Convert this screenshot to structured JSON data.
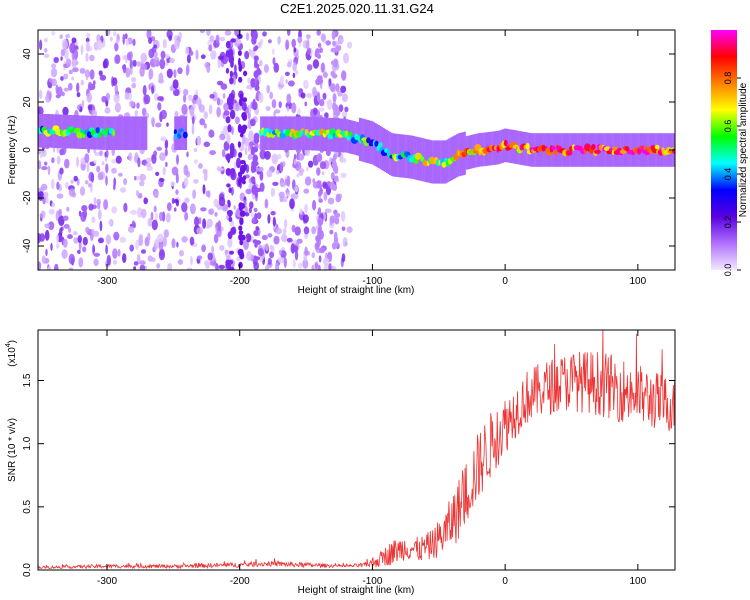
{
  "figure": {
    "title": "C2E1.2025.020.11.31.G24"
  },
  "chart_data": [
    {
      "type": "heatmap",
      "title": "C2E1.2025.020.11.31.G24",
      "xlabel": "Height of straight line (km)",
      "ylabel": "Frequency (Hz)",
      "xlim": [
        -352,
        128
      ],
      "ylim": [
        -50,
        50
      ],
      "xticks": [
        -300,
        -200,
        -100,
        0,
        100
      ],
      "xtick_labels": [
        "-300",
        "-200",
        "-100",
        "0",
        "100"
      ],
      "yticks": [
        -40,
        -20,
        0,
        20,
        40
      ],
      "ytick_labels": [
        "-40",
        "-20",
        "0",
        "20",
        "40"
      ],
      "colorbar": {
        "label": "Normalized spectral amplitude",
        "range": [
          0,
          1
        ],
        "ticks": [
          0.0,
          0.2,
          0.4,
          0.6,
          0.8
        ],
        "tick_labels": [
          "0.0",
          "0.2",
          "0.4",
          "0.6",
          "0.8"
        ],
        "colormap": "rainbow",
        "colors": [
          "#f2e8ff",
          "#b070ff",
          "#5a00e0",
          "#0000ff",
          "#00ffff",
          "#00ff00",
          "#ffff00",
          "#ff8000",
          "#ff0000",
          "#ff00ff"
        ]
      },
      "ridge": {
        "x": [
          -345,
          -300,
          -250,
          -200,
          -185,
          -150,
          -120,
          -100,
          -85,
          -70,
          -55,
          -45,
          -35,
          -20,
          -5,
          0,
          20,
          50,
          80,
          100,
          128
        ],
        "y": [
          8,
          7,
          7,
          7,
          7,
          7,
          6,
          3,
          -2,
          -3,
          -5,
          -5,
          -2,
          0,
          1,
          2,
          0,
          0,
          0,
          0,
          0
        ],
        "amp": [
          0.5,
          0.45,
          0.3,
          0.2,
          0.45,
          0.6,
          0.55,
          0.45,
          0.5,
          0.55,
          0.65,
          0.5,
          0.7,
          0.75,
          0.8,
          0.8,
          0.8,
          0.85,
          0.85,
          0.85,
          0.8
        ]
      },
      "grid": false
    },
    {
      "type": "line",
      "title": "",
      "xlabel": "Height of straight line (km)",
      "ylabel": "SNR (10 * v/v)",
      "y_multiplier_label": "(x10",
      "y_multiplier_exponent": "4",
      "xlim": [
        -352,
        128
      ],
      "ylim": [
        0,
        1.9
      ],
      "xticks": [
        -300,
        -200,
        -100,
        0,
        100
      ],
      "xtick_labels": [
        "-300",
        "-200",
        "-100",
        "0",
        "100"
      ],
      "yticks": [
        0.0,
        0.5,
        1.0,
        1.5
      ],
      "ytick_labels": [
        "0.0",
        "0.5",
        "1.0",
        "1.5"
      ],
      "series": [
        {
          "color": "#ee3333",
          "x": [
            -352,
            -300,
            -250,
            -200,
            -180,
            -150,
            -120,
            -105,
            -95,
            -85,
            -75,
            -65,
            -55,
            -45,
            -35,
            -25,
            -15,
            -5,
            5,
            15,
            30,
            50,
            70,
            90,
            110,
            128
          ],
          "y": [
            0.02,
            0.03,
            0.03,
            0.04,
            0.05,
            0.04,
            0.03,
            0.04,
            0.08,
            0.14,
            0.18,
            0.16,
            0.2,
            0.3,
            0.48,
            0.72,
            0.92,
            1.08,
            1.22,
            1.36,
            1.44,
            1.5,
            1.48,
            1.42,
            1.35,
            1.3
          ],
          "noise": [
            0.01,
            0.015,
            0.015,
            0.02,
            0.02,
            0.02,
            0.01,
            0.02,
            0.06,
            0.1,
            0.1,
            0.1,
            0.12,
            0.18,
            0.25,
            0.28,
            0.28,
            0.25,
            0.22,
            0.22,
            0.22,
            0.24,
            0.26,
            0.26,
            0.24,
            0.22
          ]
        }
      ],
      "grid": false
    }
  ]
}
